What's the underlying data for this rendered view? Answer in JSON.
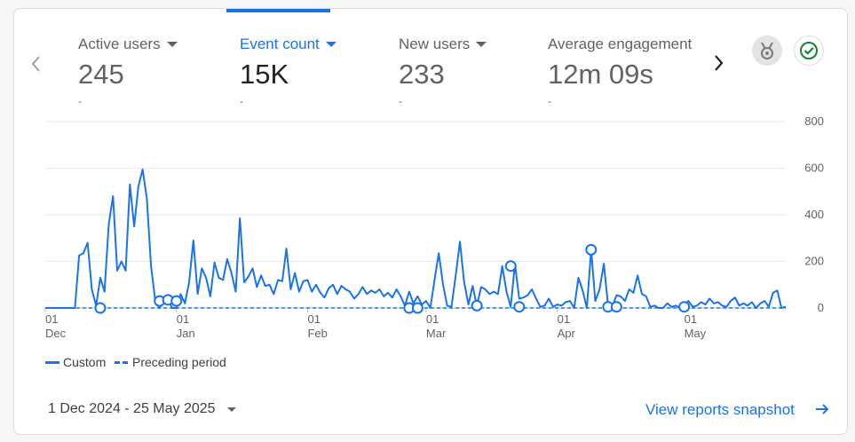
{
  "colors": {
    "accent": "#1a73e8",
    "text_muted": "#5f6368",
    "status_ok": "#188038"
  },
  "metrics": [
    {
      "label": "Active users",
      "value": "245",
      "change": "-",
      "selected": false
    },
    {
      "label": "Event count",
      "value": "15K",
      "change": "-",
      "selected": true
    },
    {
      "label": "New users",
      "value": "233",
      "change": "-",
      "selected": false
    },
    {
      "label": "Average engagement",
      "value": "12m 09s",
      "change": "-",
      "selected": false
    }
  ],
  "icons": {
    "previous": "chevron-left-icon",
    "next": "chevron-right-icon",
    "insight": "medal-icon",
    "status": "check-circle-icon",
    "metric_menu": "caret-down-icon",
    "date_menu": "caret-down-icon",
    "link": "arrow-right-icon"
  },
  "legend": {
    "current": "Custom",
    "previous": "Preceding period"
  },
  "date_range": "1 Dec 2024 - 25 May 2025",
  "snapshot_link": "View reports snapshot",
  "chart_data": {
    "type": "line",
    "xlabel": "",
    "ylabel": "",
    "ylim": [
      0,
      800
    ],
    "y_ticks": [
      "800",
      "600",
      "400",
      "200",
      "0"
    ],
    "y_tick_values": [
      800,
      600,
      400,
      200,
      0
    ],
    "y_axis_position": "right",
    "grid": true,
    "legend_position": "bottom-left",
    "x_ticks": [
      {
        "day": "01",
        "month": "Dec",
        "date": "2024-12-01"
      },
      {
        "day": "01",
        "month": "Jan",
        "date": "2025-01-01"
      },
      {
        "day": "01",
        "month": "Feb",
        "date": "2025-02-01"
      },
      {
        "day": "01",
        "month": "Mar",
        "date": "2025-03-01"
      },
      {
        "day": "01",
        "month": "Apr",
        "date": "2025-04-01"
      },
      {
        "day": "01",
        "month": "May",
        "date": "2025-05-01"
      }
    ],
    "x_start": "2024-12-01",
    "x_end": "2025-05-25",
    "series": [
      {
        "name": "Custom",
        "style": "solid",
        "color": "#1a73e8",
        "points": [
          [
            "2024-12-01",
            0
          ],
          [
            "2024-12-08",
            0
          ],
          [
            "2024-12-09",
            225
          ],
          [
            "2024-12-10",
            235
          ],
          [
            "2024-12-11",
            280
          ],
          [
            "2024-12-12",
            80
          ],
          [
            "2024-12-13",
            10
          ],
          [
            "2024-12-14",
            130
          ],
          [
            "2024-12-15",
            70
          ],
          [
            "2024-12-16",
            360
          ],
          [
            "2024-12-17",
            480
          ],
          [
            "2024-12-18",
            160
          ],
          [
            "2024-12-19",
            200
          ],
          [
            "2024-12-20",
            160
          ],
          [
            "2024-12-21",
            530
          ],
          [
            "2024-12-22",
            350
          ],
          [
            "2024-12-23",
            520
          ],
          [
            "2024-12-24",
            595
          ],
          [
            "2024-12-25",
            470
          ],
          [
            "2024-12-26",
            180
          ],
          [
            "2024-12-27",
            30
          ],
          [
            "2024-12-28",
            0
          ],
          [
            "2024-12-29",
            30
          ],
          [
            "2024-12-30",
            35
          ],
          [
            "2024-12-31",
            0
          ],
          [
            "2025-01-01",
            0
          ],
          [
            "2025-01-02",
            60
          ],
          [
            "2025-01-03",
            20
          ],
          [
            "2025-01-04",
            110
          ],
          [
            "2025-01-05",
            290
          ],
          [
            "2025-01-06",
            60
          ],
          [
            "2025-01-07",
            170
          ],
          [
            "2025-01-08",
            130
          ],
          [
            "2025-01-09",
            50
          ],
          [
            "2025-01-10",
            195
          ],
          [
            "2025-01-11",
            130
          ],
          [
            "2025-01-12",
            120
          ],
          [
            "2025-01-13",
            210
          ],
          [
            "2025-01-14",
            150
          ],
          [
            "2025-01-15",
            70
          ],
          [
            "2025-01-16",
            385
          ],
          [
            "2025-01-17",
            110
          ],
          [
            "2025-01-18",
            135
          ],
          [
            "2025-01-19",
            170
          ],
          [
            "2025-01-20",
            90
          ],
          [
            "2025-01-21",
            140
          ],
          [
            "2025-01-22",
            95
          ],
          [
            "2025-01-23",
            100
          ],
          [
            "2025-01-24",
            60
          ],
          [
            "2025-01-25",
            120
          ],
          [
            "2025-01-26",
            115
          ],
          [
            "2025-01-27",
            255
          ],
          [
            "2025-01-28",
            80
          ],
          [
            "2025-01-29",
            150
          ],
          [
            "2025-01-30",
            70
          ],
          [
            "2025-01-31",
            115
          ],
          [
            "2025-02-01",
            120
          ],
          [
            "2025-02-02",
            70
          ],
          [
            "2025-02-03",
            100
          ],
          [
            "2025-02-04",
            65
          ],
          [
            "2025-02-05",
            45
          ],
          [
            "2025-02-06",
            85
          ],
          [
            "2025-02-07",
            100
          ],
          [
            "2025-02-08",
            60
          ],
          [
            "2025-02-09",
            95
          ],
          [
            "2025-02-10",
            80
          ],
          [
            "2025-02-11",
            70
          ],
          [
            "2025-02-12",
            40
          ],
          [
            "2025-02-13",
            60
          ],
          [
            "2025-02-14",
            90
          ],
          [
            "2025-02-15",
            60
          ],
          [
            "2025-02-16",
            75
          ],
          [
            "2025-02-17",
            65
          ],
          [
            "2025-02-18",
            80
          ],
          [
            "2025-02-19",
            50
          ],
          [
            "2025-02-20",
            65
          ],
          [
            "2025-02-21",
            45
          ],
          [
            "2025-02-22",
            80
          ],
          [
            "2025-02-23",
            50
          ],
          [
            "2025-02-24",
            10
          ],
          [
            "2025-02-25",
            70
          ],
          [
            "2025-02-26",
            20
          ],
          [
            "2025-02-27",
            50
          ],
          [
            "2025-02-28",
            15
          ],
          [
            "2025-03-01",
            30
          ],
          [
            "2025-03-02",
            0
          ],
          [
            "2025-03-03",
            120
          ],
          [
            "2025-03-04",
            235
          ],
          [
            "2025-03-05",
            100
          ],
          [
            "2025-03-06",
            10
          ],
          [
            "2025-03-07",
            5
          ],
          [
            "2025-03-08",
            140
          ],
          [
            "2025-03-09",
            285
          ],
          [
            "2025-03-10",
            110
          ],
          [
            "2025-03-11",
            15
          ],
          [
            "2025-03-12",
            95
          ],
          [
            "2025-03-13",
            10
          ],
          [
            "2025-03-14",
            90
          ],
          [
            "2025-03-15",
            80
          ],
          [
            "2025-03-16",
            60
          ],
          [
            "2025-03-17",
            70
          ],
          [
            "2025-03-18",
            60
          ],
          [
            "2025-03-19",
            180
          ],
          [
            "2025-03-20",
            70
          ],
          [
            "2025-03-21",
            5
          ],
          [
            "2025-03-22",
            190
          ],
          [
            "2025-03-23",
            40
          ],
          [
            "2025-03-24",
            45
          ],
          [
            "2025-03-25",
            55
          ],
          [
            "2025-03-26",
            80
          ],
          [
            "2025-03-27",
            40
          ],
          [
            "2025-03-28",
            5
          ],
          [
            "2025-03-29",
            10
          ],
          [
            "2025-03-30",
            40
          ],
          [
            "2025-03-31",
            5
          ],
          [
            "2025-04-01",
            15
          ],
          [
            "2025-04-02",
            10
          ],
          [
            "2025-04-03",
            25
          ],
          [
            "2025-04-04",
            30
          ],
          [
            "2025-04-05",
            0
          ],
          [
            "2025-04-06",
            130
          ],
          [
            "2025-04-07",
            75
          ],
          [
            "2025-04-08",
            0
          ],
          [
            "2025-04-09",
            250
          ],
          [
            "2025-04-10",
            30
          ],
          [
            "2025-04-11",
            80
          ],
          [
            "2025-04-12",
            190
          ],
          [
            "2025-04-13",
            15
          ],
          [
            "2025-04-14",
            5
          ],
          [
            "2025-04-15",
            55
          ],
          [
            "2025-04-16",
            50
          ],
          [
            "2025-04-17",
            30
          ],
          [
            "2025-04-18",
            80
          ],
          [
            "2025-04-19",
            65
          ],
          [
            "2025-04-20",
            140
          ],
          [
            "2025-04-21",
            60
          ],
          [
            "2025-04-22",
            50
          ],
          [
            "2025-04-23",
            5
          ],
          [
            "2025-04-24",
            10
          ],
          [
            "2025-04-25",
            0
          ],
          [
            "2025-04-26",
            0
          ],
          [
            "2025-04-27",
            20
          ],
          [
            "2025-04-28",
            5
          ],
          [
            "2025-04-29",
            10
          ],
          [
            "2025-04-30",
            0
          ],
          [
            "2025-05-01",
            15
          ],
          [
            "2025-05-02",
            30
          ],
          [
            "2025-05-03",
            5
          ],
          [
            "2025-05-04",
            10
          ],
          [
            "2025-05-05",
            25
          ],
          [
            "2025-05-06",
            15
          ],
          [
            "2025-05-07",
            40
          ],
          [
            "2025-05-08",
            20
          ],
          [
            "2025-05-09",
            25
          ],
          [
            "2025-05-10",
            10
          ],
          [
            "2025-05-11",
            5
          ],
          [
            "2025-05-12",
            30
          ],
          [
            "2025-05-13",
            45
          ],
          [
            "2025-05-14",
            10
          ],
          [
            "2025-05-15",
            20
          ],
          [
            "2025-05-16",
            10
          ],
          [
            "2025-05-17",
            25
          ],
          [
            "2025-05-18",
            0
          ],
          [
            "2025-05-19",
            20
          ],
          [
            "2025-05-20",
            30
          ],
          [
            "2025-05-21",
            5
          ],
          [
            "2025-05-22",
            65
          ],
          [
            "2025-05-23",
            75
          ],
          [
            "2025-05-24",
            0
          ],
          [
            "2025-05-25",
            5
          ]
        ]
      },
      {
        "name": "Preceding period",
        "style": "dashed",
        "color": "#1a73e8",
        "points": [
          [
            "2024-12-01",
            0
          ],
          [
            "2025-05-25",
            0
          ]
        ]
      }
    ],
    "markers": [
      [
        "2024-12-14",
        0
      ],
      [
        "2024-12-28",
        30
      ],
      [
        "2024-12-30",
        35
      ],
      [
        "2025-01-01",
        30
      ],
      [
        "2025-02-25",
        0
      ],
      [
        "2025-02-27",
        0
      ],
      [
        "2025-03-13",
        10
      ],
      [
        "2025-03-21",
        180
      ],
      [
        "2025-03-23",
        5
      ],
      [
        "2025-04-09",
        250
      ],
      [
        "2025-04-13",
        5
      ],
      [
        "2025-04-15",
        5
      ],
      [
        "2025-05-01",
        5
      ]
    ]
  }
}
